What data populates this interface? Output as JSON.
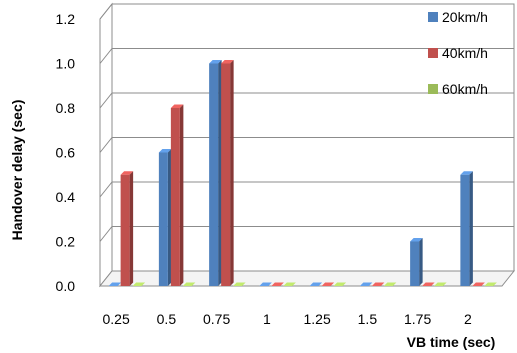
{
  "chart_data": {
    "type": "bar",
    "style": "3d-clustered-column",
    "categories": [
      "0.25",
      "0.5",
      "0.75",
      "1",
      "1.25",
      "1.5",
      "1.75",
      "2"
    ],
    "series": [
      {
        "name": "20km/h",
        "color": "#4F81BD",
        "values": [
          0,
          0.6,
          1.0,
          0,
          0,
          0,
          0.2,
          0.5
        ]
      },
      {
        "name": "40km/h",
        "color": "#C0504D",
        "values": [
          0.5,
          0.8,
          1.0,
          0,
          0,
          0,
          0,
          0
        ]
      },
      {
        "name": "60km/h",
        "color": "#9BBB59",
        "values": [
          0,
          0,
          0,
          0,
          0,
          0,
          0,
          0
        ]
      }
    ],
    "xlabel": "VB time (sec)",
    "ylabel": "Handover delay (sec)",
    "ylim": [
      0,
      1.2
    ],
    "yticks": [
      "0.0",
      "0.2",
      "0.4",
      "0.6",
      "0.8",
      "1.0",
      "1.2"
    ],
    "grid": true,
    "legend_position": "right"
  }
}
